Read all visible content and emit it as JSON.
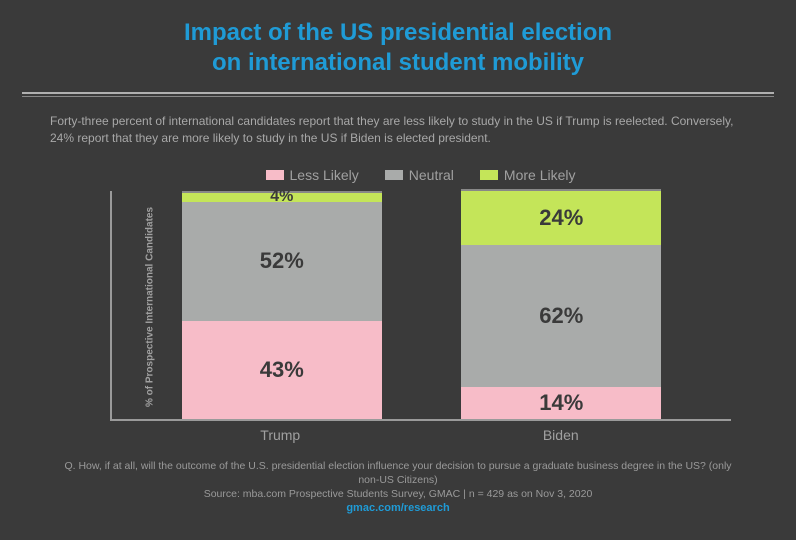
{
  "title_line1": "Impact of the US presidential election",
  "title_line2": "on international student mobility",
  "title_color": "#1f9bd6",
  "title_fontsize": 24,
  "description": "Forty-three percent of international candidates report that they are less likely to study in the US if Trump is reelected. Conversely, 24% report that they are more likely to study in the US if Biden is elected president.",
  "yaxis_label": "% of Prospective International Candidates",
  "legend": [
    {
      "label": "Less Likely",
      "color": "#f7bcc8"
    },
    {
      "label": "Neutral",
      "color": "#a9abaa"
    },
    {
      "label": "More Likely",
      "color": "#c4e559"
    }
  ],
  "chart": {
    "type": "stacked-bar",
    "segment_label_fontsize_large": 22,
    "segment_label_fontsize_small": 16,
    "bars": [
      {
        "category": "Trump",
        "segments": [
          {
            "key": "more",
            "value": 4,
            "label": "4%",
            "color": "#c4e559"
          },
          {
            "key": "neutral",
            "value": 52,
            "label": "52%",
            "color": "#a9abaa"
          },
          {
            "key": "less",
            "value": 43,
            "label": "43%",
            "color": "#f7bcc8"
          }
        ]
      },
      {
        "category": "Biden",
        "segments": [
          {
            "key": "more",
            "value": 24,
            "label": "24%",
            "color": "#c4e559"
          },
          {
            "key": "neutral",
            "value": 62,
            "label": "62%",
            "color": "#a9abaa"
          },
          {
            "key": "less",
            "value": 14,
            "label": "14%",
            "color": "#f7bcc8"
          }
        ]
      }
    ]
  },
  "footer_q": "Q. How, if at all, will the outcome of the U.S. presidential election influence your decision to pursue a graduate business degree in the US? (only non-US Citizens)",
  "footer_source": "Source: mba.com Prospective Students Survey, GMAC | n = 429 as on Nov 3, 2020",
  "footer_link": "gmac.com/research",
  "background_color": "#3a3a3a",
  "axis_color": "#9a9a9a"
}
